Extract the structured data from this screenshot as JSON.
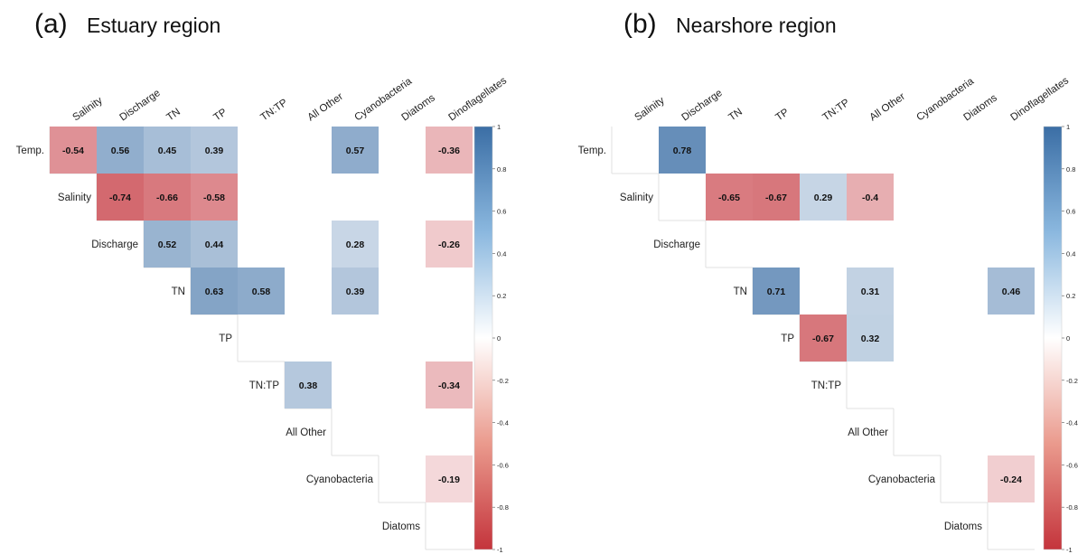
{
  "chart_data": [
    {
      "type": "heatmap",
      "panel_label": "(a)",
      "title": "Estuary region",
      "variables": [
        "Temp.",
        "Salinity",
        "Discharge",
        "TN",
        "TP",
        "TN:TP",
        "All Other",
        "Cyanobacteria",
        "Diatoms",
        "Dinoflagellates"
      ],
      "colorbar": {
        "range": [
          -1,
          1
        ],
        "ticks": [
          "1",
          "0.8",
          "0.6",
          "0.4",
          "0.2",
          "0",
          "-0.2",
          "-0.4",
          "-0.6",
          "-0.8",
          "-1"
        ]
      },
      "cells": [
        {
          "row": "Temp.",
          "col": "Salinity",
          "value": -0.54,
          "label": "-0.54"
        },
        {
          "row": "Temp.",
          "col": "Discharge",
          "value": 0.56,
          "label": "0.56"
        },
        {
          "row": "Temp.",
          "col": "TN",
          "value": 0.45,
          "label": "0.45"
        },
        {
          "row": "Temp.",
          "col": "TP",
          "value": 0.39,
          "label": "0.39"
        },
        {
          "row": "Temp.",
          "col": "Cyanobacteria",
          "value": 0.57,
          "label": "0.57"
        },
        {
          "row": "Temp.",
          "col": "Dinoflagellates",
          "value": -0.36,
          "label": "-0.36"
        },
        {
          "row": "Salinity",
          "col": "Discharge",
          "value": -0.74,
          "label": "-0.74"
        },
        {
          "row": "Salinity",
          "col": "TN",
          "value": -0.66,
          "label": "-0.66"
        },
        {
          "row": "Salinity",
          "col": "TP",
          "value": -0.58,
          "label": "-0.58"
        },
        {
          "row": "Discharge",
          "col": "TN",
          "value": 0.52,
          "label": "0.52"
        },
        {
          "row": "Discharge",
          "col": "TP",
          "value": 0.44,
          "label": "0.44"
        },
        {
          "row": "Discharge",
          "col": "Cyanobacteria",
          "value": 0.28,
          "label": "0.28"
        },
        {
          "row": "Discharge",
          "col": "Dinoflagellates",
          "value": -0.26,
          "label": "-0.26"
        },
        {
          "row": "TN",
          "col": "TP",
          "value": 0.63,
          "label": "0.63"
        },
        {
          "row": "TN",
          "col": "TN:TP",
          "value": 0.58,
          "label": "0.58"
        },
        {
          "row": "TN",
          "col": "Cyanobacteria",
          "value": 0.39,
          "label": "0.39"
        },
        {
          "row": "TN:TP",
          "col": "All Other",
          "value": 0.38,
          "label": "0.38"
        },
        {
          "row": "TN:TP",
          "col": "Dinoflagellates",
          "value": -0.34,
          "label": "-0.34"
        },
        {
          "row": "Cyanobacteria",
          "col": "Dinoflagellates",
          "value": -0.19,
          "label": "-0.19"
        }
      ]
    },
    {
      "type": "heatmap",
      "panel_label": "(b)",
      "title": "Nearshore region",
      "variables": [
        "Temp.",
        "Salinity",
        "Discharge",
        "TN",
        "TP",
        "TN:TP",
        "All Other",
        "Cyanobacteria",
        "Diatoms",
        "Dinoflagellates"
      ],
      "colorbar": {
        "range": [
          -1,
          1
        ],
        "ticks": [
          "1",
          "0.8",
          "0.6",
          "0.4",
          "0.2",
          "0",
          "-0.2",
          "-0.4",
          "-0.6",
          "-0.8",
          "-1"
        ]
      },
      "cells": [
        {
          "row": "Temp.",
          "col": "Discharge",
          "value": 0.78,
          "label": "0.78"
        },
        {
          "row": "Salinity",
          "col": "TN",
          "value": -0.65,
          "label": "-0.65"
        },
        {
          "row": "Salinity",
          "col": "TP",
          "value": -0.67,
          "label": "-0.67"
        },
        {
          "row": "Salinity",
          "col": "TN:TP",
          "value": 0.29,
          "label": "0.29"
        },
        {
          "row": "Salinity",
          "col": "All Other",
          "value": -0.4,
          "label": "-0.4"
        },
        {
          "row": "TN",
          "col": "TP",
          "value": 0.71,
          "label": "0.71"
        },
        {
          "row": "TN",
          "col": "All Other",
          "value": 0.31,
          "label": "0.31"
        },
        {
          "row": "TN",
          "col": "Dinoflagellates",
          "value": 0.46,
          "label": "0.46"
        },
        {
          "row": "TP",
          "col": "TN:TP",
          "value": -0.67,
          "label": "-0.67"
        },
        {
          "row": "TP",
          "col": "All Other",
          "value": 0.32,
          "label": "0.32"
        },
        {
          "row": "Cyanobacteria",
          "col": "Dinoflagellates",
          "value": -0.24,
          "label": "-0.24"
        }
      ]
    }
  ]
}
